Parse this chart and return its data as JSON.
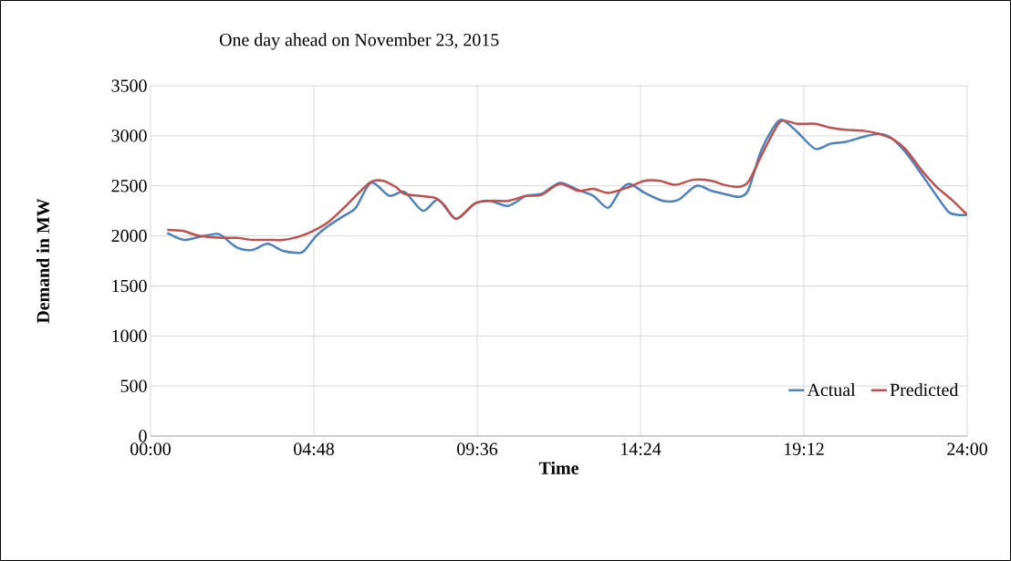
{
  "chart_data": {
    "type": "line",
    "title": "One day ahead on November 23, 2015",
    "xlabel": "Time",
    "ylabel": "Demand in MW",
    "xlim": [
      0,
      24
    ],
    "xticks": [
      {
        "value": 0,
        "label": "00:00"
      },
      {
        "value": 4.8,
        "label": "04:48"
      },
      {
        "value": 9.6,
        "label": "09:36"
      },
      {
        "value": 14.4,
        "label": "14:24"
      },
      {
        "value": 19.2,
        "label": "19:12"
      },
      {
        "value": 24,
        "label": "24:00"
      }
    ],
    "ylim": [
      0,
      3500
    ],
    "yticks": [
      0,
      500,
      1000,
      1500,
      2000,
      2500,
      3000,
      3500
    ],
    "grid": true,
    "legend": "bottom right",
    "marker": "none",
    "line_style": "solid",
    "series": [
      {
        "name": "Actual",
        "color": "#4f81bd",
        "x": [
          0.49,
          0.98,
          1.43,
          1.92,
          2.1,
          2.55,
          2.99,
          3.44,
          3.89,
          4.34,
          4.51,
          4.87,
          5.23,
          5.68,
          6.03,
          6.48,
          7.02,
          7.46,
          8.0,
          8.45,
          8.98,
          9.52,
          9.97,
          10.51,
          11.04,
          11.49,
          12.03,
          12.56,
          13.01,
          13.45,
          13.81,
          14.08,
          14.52,
          15.06,
          15.51,
          16.04,
          16.49,
          16.85,
          17.3,
          17.57,
          17.92,
          18.28,
          18.55,
          19.0,
          19.53,
          19.98,
          20.43,
          20.96,
          21.4,
          21.76,
          22.2,
          22.65,
          23.1,
          23.45,
          23.72,
          24.0
        ],
        "values": [
          2030,
          1960,
          1990,
          2020,
          2000,
          1880,
          1860,
          1920,
          1850,
          1830,
          1850,
          2000,
          2100,
          2200,
          2280,
          2530,
          2400,
          2440,
          2250,
          2360,
          2170,
          2320,
          2350,
          2300,
          2400,
          2420,
          2530,
          2460,
          2400,
          2280,
          2460,
          2520,
          2430,
          2350,
          2360,
          2500,
          2450,
          2420,
          2390,
          2460,
          2830,
          3070,
          3160,
          3040,
          2870,
          2920,
          2940,
          2990,
          3020,
          2980,
          2830,
          2620,
          2400,
          2240,
          2210,
          2210
        ]
      },
      {
        "name": "Predicted",
        "color": "#c0504d",
        "x": [
          0.49,
          0.94,
          1.43,
          2.1,
          2.55,
          2.99,
          3.44,
          3.89,
          4.34,
          4.78,
          5.23,
          5.68,
          6.12,
          6.48,
          6.84,
          7.2,
          7.46,
          7.91,
          8.36,
          8.63,
          8.98,
          9.52,
          9.97,
          10.51,
          11.04,
          11.49,
          12.03,
          12.56,
          13.01,
          13.45,
          13.99,
          14.52,
          14.97,
          15.42,
          15.95,
          16.49,
          16.85,
          17.3,
          17.57,
          17.92,
          18.28,
          18.55,
          19.0,
          19.53,
          19.98,
          20.43,
          20.96,
          21.4,
          21.85,
          22.2,
          22.65,
          23.1,
          23.55,
          24.0
        ],
        "values": [
          2060,
          2050,
          2000,
          1980,
          1980,
          1960,
          1960,
          1960,
          1990,
          2050,
          2140,
          2280,
          2430,
          2540,
          2550,
          2490,
          2420,
          2400,
          2380,
          2310,
          2170,
          2320,
          2350,
          2350,
          2400,
          2410,
          2520,
          2450,
          2470,
          2430,
          2480,
          2550,
          2550,
          2510,
          2560,
          2550,
          2510,
          2490,
          2540,
          2780,
          3020,
          3150,
          3120,
          3120,
          3080,
          3060,
          3050,
          3020,
          2960,
          2860,
          2660,
          2490,
          2360,
          2210
        ]
      }
    ]
  }
}
